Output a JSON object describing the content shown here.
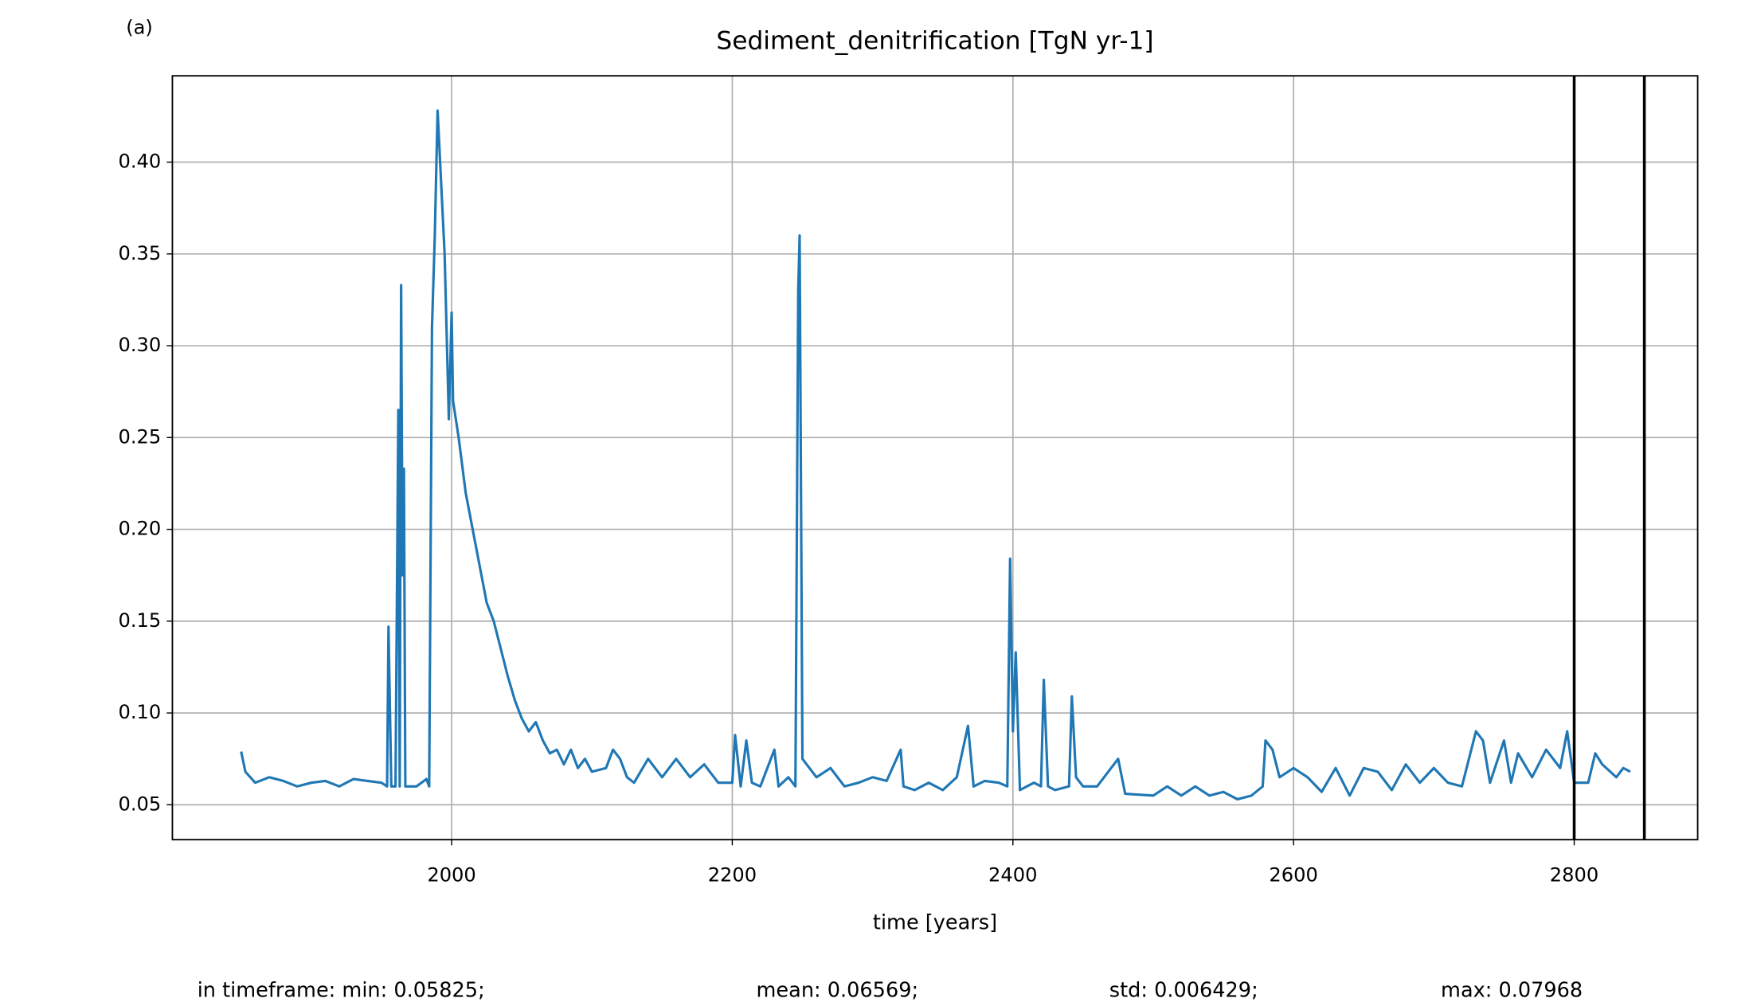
{
  "chart_data": {
    "type": "line",
    "panel_label": "(a)",
    "title": "Sediment_denitrification [TgN yr-1]",
    "x_label": "time [years]",
    "xlim": [
      1801,
      2888
    ],
    "xticks": [
      2000,
      2200,
      2400,
      2600,
      2800
    ],
    "ylim": [
      0.031,
      0.447
    ],
    "yticks": [
      0.05,
      {
        "value": 0.1,
        "label": "0.10"
      },
      0.15,
      {
        "value": 0.2,
        "label": "0.20"
      },
      0.25,
      {
        "value": 0.3,
        "label": "0.30"
      },
      0.35,
      {
        "value": 0.4,
        "label": "0.40"
      }
    ],
    "grid": true,
    "vlines": [
      2800,
      2850
    ],
    "vline_color": "#000000",
    "series": [
      {
        "color": "#1f77b4",
        "x": [
          1850,
          1853,
          1860,
          1870,
          1880,
          1890,
          1900,
          1910,
          1920,
          1930,
          1940,
          1950,
          1954,
          1955,
          1957,
          1960,
          1962,
          1963,
          1964,
          1965,
          1966,
          1967,
          1975,
          1982,
          1984,
          1986,
          1988,
          1990,
          1995,
          1998,
          2000,
          2001,
          2005,
          2010,
          2020,
          2025,
          2030,
          2035,
          2040,
          2045,
          2050,
          2055,
          2060,
          2065,
          2070,
          2075,
          2080,
          2085,
          2090,
          2095,
          2100,
          2110,
          2115,
          2120,
          2125,
          2130,
          2140,
          2150,
          2160,
          2170,
          2180,
          2190,
          2200,
          2202,
          2206,
          2210,
          2214,
          2220,
          2230,
          2233,
          2240,
          2245,
          2247,
          2248,
          2250,
          2255,
          2260,
          2270,
          2280,
          2290,
          2300,
          2310,
          2320,
          2322,
          2330,
          2340,
          2350,
          2360,
          2368,
          2372,
          2380,
          2390,
          2396,
          2398,
          2400,
          2402,
          2405,
          2410,
          2415,
          2420,
          2422,
          2425,
          2430,
          2440,
          2442,
          2445,
          2450,
          2460,
          2475,
          2480,
          2500,
          2510,
          2520,
          2530,
          2540,
          2550,
          2560,
          2570,
          2578,
          2580,
          2585,
          2590,
          2600,
          2610,
          2620,
          2630,
          2640,
          2650,
          2660,
          2670,
          2680,
          2690,
          2700,
          2710,
          2720,
          2730,
          2735,
          2740,
          2750,
          2755,
          2760,
          2770,
          2780,
          2790,
          2795,
          2800,
          2810,
          2815,
          2820,
          2830,
          2835,
          2840
        ],
        "values": [
          0.079,
          0.068,
          0.062,
          0.065,
          0.063,
          0.06,
          0.062,
          0.063,
          0.06,
          0.064,
          0.063,
          0.062,
          0.06,
          0.147,
          0.06,
          0.06,
          0.265,
          0.06,
          0.333,
          0.175,
          0.233,
          0.06,
          0.06,
          0.064,
          0.06,
          0.31,
          0.36,
          0.428,
          0.35,
          0.26,
          0.318,
          0.27,
          0.25,
          0.22,
          0.18,
          0.16,
          0.15,
          0.135,
          0.12,
          0.107,
          0.097,
          0.09,
          0.095,
          0.085,
          0.078,
          0.08,
          0.072,
          0.08,
          0.07,
          0.075,
          0.068,
          0.07,
          0.08,
          0.075,
          0.065,
          0.062,
          0.075,
          0.065,
          0.075,
          0.065,
          0.072,
          0.062,
          0.062,
          0.088,
          0.06,
          0.085,
          0.062,
          0.06,
          0.08,
          0.06,
          0.065,
          0.06,
          0.33,
          0.36,
          0.075,
          0.07,
          0.065,
          0.07,
          0.06,
          0.062,
          0.065,
          0.063,
          0.08,
          0.06,
          0.058,
          0.062,
          0.058,
          0.065,
          0.093,
          0.06,
          0.063,
          0.062,
          0.06,
          0.184,
          0.09,
          0.133,
          0.058,
          0.06,
          0.062,
          0.06,
          0.118,
          0.06,
          0.058,
          0.06,
          0.109,
          0.065,
          0.06,
          0.06,
          0.075,
          0.056,
          0.055,
          0.06,
          0.055,
          0.06,
          0.055,
          0.057,
          0.053,
          0.055,
          0.06,
          0.085,
          0.08,
          0.065,
          0.07,
          0.065,
          0.057,
          0.07,
          0.055,
          0.07,
          0.068,
          0.058,
          0.072,
          0.062,
          0.07,
          0.062,
          0.06,
          0.09,
          0.085,
          0.062,
          0.085,
          0.062,
          0.078,
          0.065,
          0.08,
          0.07,
          0.09,
          0.062,
          0.062,
          0.078,
          0.072,
          0.065,
          0.07,
          0.068
        ]
      }
    ],
    "stats": [
      "in timeframe: min: 0.05825;",
      "mean: 0.06569;",
      "std: 0.006429;",
      "max: 0.07968"
    ]
  }
}
